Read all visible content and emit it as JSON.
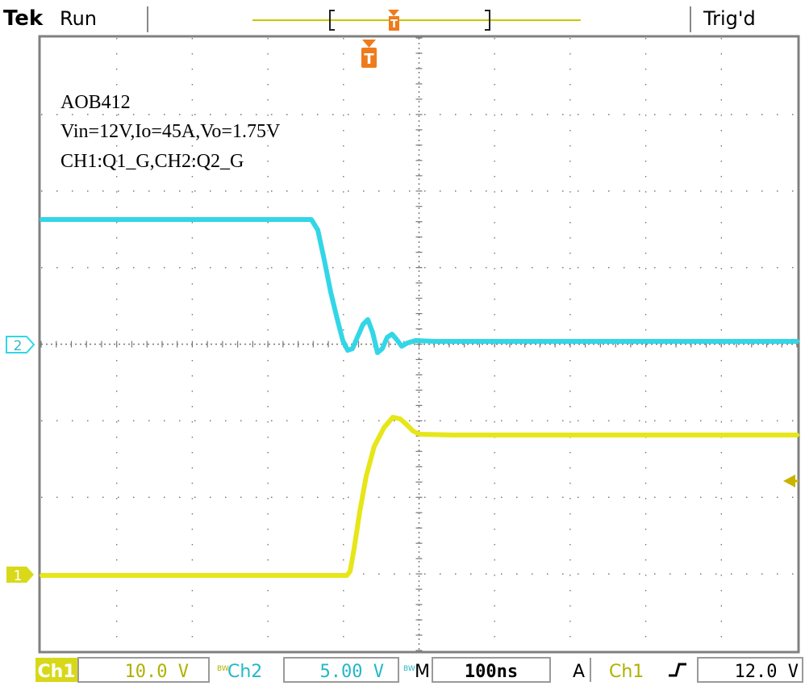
{
  "header": {
    "brand": "Tek",
    "status": "Run",
    "trigger_state": "Trig'd"
  },
  "annotations": {
    "line1": "AOB412",
    "line2": "Vin=12V,Io=45A,Vo=1.75V",
    "line3": "CH1:Q1_G,CH2:Q2_G"
  },
  "markers": {
    "trigger": "T",
    "ch1": "1",
    "ch2": "2"
  },
  "footer": {
    "ch1_label": "Ch1",
    "ch1_scale": "10.0 V",
    "ch2_label": "Ch2",
    "ch2_scale": "5.00 V",
    "bw_mark": "BW",
    "timebase_label": "M",
    "timebase": "100ns",
    "acq_mode": "A",
    "trig_source": "Ch1",
    "trig_slope": "rising",
    "trig_level": "12.0 V"
  },
  "colors": {
    "ch1": "#e6e619",
    "ch2": "#33d6e6",
    "trigger": "#ee7c1c",
    "grid": "#666666",
    "frame": "#808080",
    "text": "#000000"
  }
}
